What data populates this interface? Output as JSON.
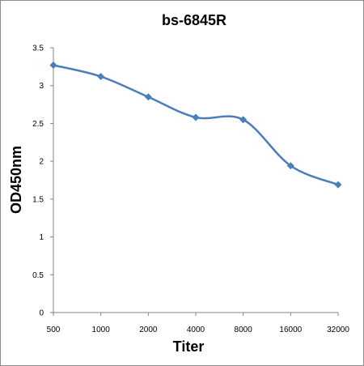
{
  "chart_data": {
    "type": "line",
    "title": "bs-6845R",
    "xlabel": "Titer",
    "ylabel": "OD450nm",
    "categories": [
      "500",
      "1000",
      "2000",
      "4000",
      "8000",
      "16000",
      "32000"
    ],
    "series": [
      {
        "values": [
          3.27,
          3.12,
          2.85,
          2.58,
          2.55,
          1.94,
          1.69
        ]
      }
    ],
    "ylim": [
      0,
      3.5
    ],
    "yticks": [
      "0",
      "0.5",
      "1",
      "1.5",
      "2",
      "2.5",
      "3",
      "3.5"
    ],
    "grid": false,
    "legend": "none",
    "line_color": "#4a7ebb",
    "marker": "diamond"
  }
}
